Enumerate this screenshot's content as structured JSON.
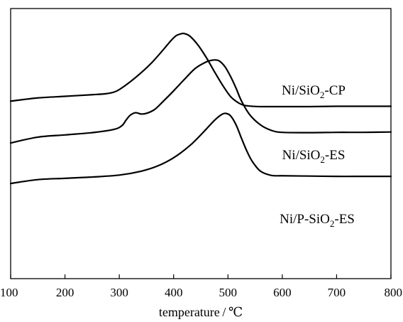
{
  "chart_data": {
    "type": "line",
    "title": "",
    "xlabel": "temperature / ℃",
    "ylabel": "",
    "xlim": [
      100,
      800
    ],
    "xticks": [
      100,
      200,
      300,
      400,
      500,
      600,
      700,
      800
    ],
    "yticks": [],
    "grid": false,
    "series": [
      {
        "name": "Ni/SiO2-CP",
        "label": {
          "base": "Ni/SiO",
          "sub": "2",
          "rest": "-CP"
        },
        "x": [
          100,
          150,
          200,
          250,
          275,
          290,
          300,
          320,
          340,
          360,
          380,
          395,
          405,
          415,
          420,
          430,
          445,
          460,
          475,
          490,
          505,
          520,
          530,
          545,
          560,
          600,
          650,
          700,
          750,
          800
        ],
        "y": [
          7.6,
          8.1,
          8.35,
          8.6,
          8.75,
          9.0,
          9.4,
          10.6,
          12.0,
          13.6,
          15.5,
          17.0,
          17.8,
          18.1,
          18.1,
          17.7,
          16.3,
          14.4,
          12.2,
          10.1,
          8.3,
          7.3,
          6.95,
          6.8,
          6.75,
          6.75,
          6.75,
          6.8,
          6.8,
          6.8
        ]
      },
      {
        "name": "Ni/SiO2-ES",
        "label": {
          "base": "Ni/SiO",
          "sub": "2",
          "rest": "-ES"
        },
        "x": [
          100,
          150,
          200,
          250,
          290,
          305,
          312,
          320,
          330,
          340,
          350,
          365,
          380,
          400,
          420,
          440,
          460,
          470,
          478,
          485,
          495,
          505,
          515,
          525,
          540,
          560,
          580,
          600,
          650,
          700,
          750,
          800
        ],
        "y": [
          1.1,
          2.0,
          2.35,
          2.7,
          3.2,
          3.8,
          4.6,
          5.4,
          5.8,
          5.6,
          5.7,
          6.3,
          7.5,
          9.2,
          11.0,
          12.7,
          13.7,
          13.95,
          14.0,
          13.8,
          12.9,
          11.4,
          9.6,
          7.6,
          5.5,
          3.9,
          3.05,
          2.75,
          2.7,
          2.75,
          2.75,
          2.8
        ]
      },
      {
        "name": "Ni/P-SiO2-ES",
        "label": {
          "base": "Ni/P-SiO",
          "sub": "2",
          "rest": "-ES"
        },
        "x": [
          100,
          150,
          200,
          250,
          300,
          340,
          370,
          400,
          430,
          455,
          475,
          488,
          496,
          505,
          515,
          525,
          535,
          545,
          560,
          580,
          600,
          650,
          700,
          750,
          800
        ],
        "y": [
          -5.2,
          -4.6,
          -4.4,
          -4.2,
          -3.9,
          -3.3,
          -2.5,
          -1.2,
          0.7,
          2.8,
          4.6,
          5.5,
          5.7,
          5.3,
          3.9,
          1.8,
          -0.2,
          -1.8,
          -3.3,
          -3.95,
          -4.0,
          -4.05,
          -4.1,
          -4.1,
          -4.1
        ]
      }
    ]
  }
}
